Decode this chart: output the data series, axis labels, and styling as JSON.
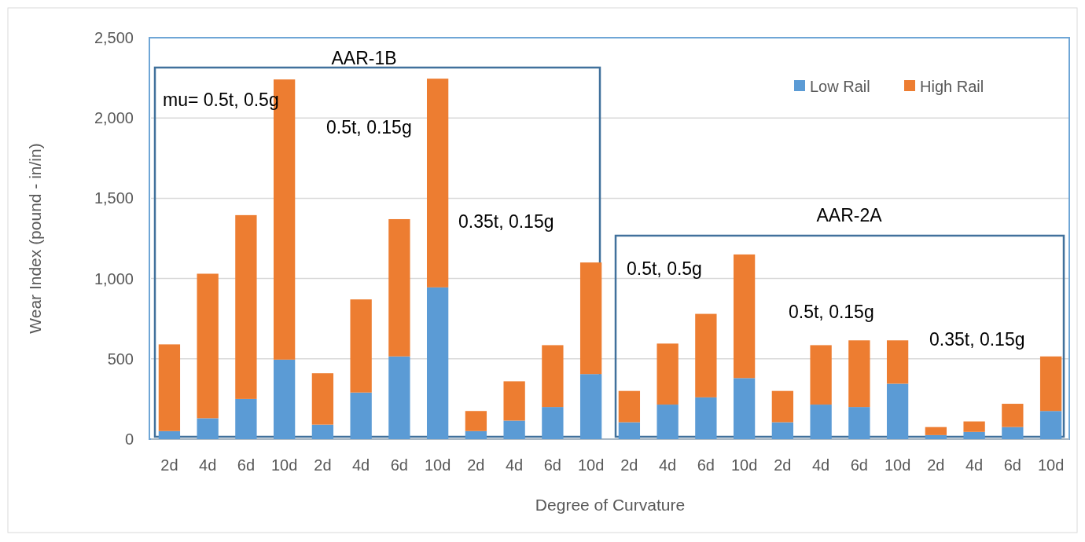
{
  "chart_data": {
    "type": "bar",
    "stacked": true,
    "xlabel": "Degree of Curvature",
    "ylabel": "Wear Index (pound - in/in)",
    "categories": [
      "2d",
      "4d",
      "6d",
      "10d",
      "2d",
      "4d",
      "6d",
      "10d",
      "2d",
      "4d",
      "6d",
      "10d",
      "2d",
      "4d",
      "6d",
      "10d",
      "2d",
      "4d",
      "6d",
      "10d",
      "2d",
      "4d",
      "6d",
      "10d"
    ],
    "series": [
      {
        "name": "Low Rail",
        "color": "#5b9bd5",
        "values": [
          50,
          130,
          250,
          495,
          90,
          290,
          515,
          945,
          50,
          115,
          200,
          405,
          105,
          215,
          260,
          380,
          105,
          215,
          200,
          345,
          25,
          45,
          75,
          175
        ]
      },
      {
        "name": "High Rail",
        "color": "#ed7d31",
        "values": [
          540,
          900,
          1145,
          1745,
          320,
          580,
          855,
          1300,
          125,
          245,
          385,
          695,
          195,
          380,
          520,
          770,
          195,
          370,
          415,
          270,
          50,
          65,
          145,
          340
        ]
      }
    ],
    "ylim": [
      0,
      2500
    ],
    "yticks": [
      {
        "value": 0,
        "label": "0"
      },
      {
        "value": 500,
        "label": "500"
      },
      {
        "value": 1000,
        "label": "1,000"
      },
      {
        "value": 1500,
        "label": "1,500"
      },
      {
        "value": 2000,
        "label": "2,000"
      },
      {
        "value": 2500,
        "label": "2,500"
      }
    ],
    "grid": "y",
    "legend": "top right",
    "annotations": [
      "AAR-1B",
      "mu= 0.5t, 0.5g",
      "0.5t, 0.15g",
      "0.35t, 0.15g",
      "AAR-2A",
      "0.5t, 0.5g",
      "0.5t, 0.15g",
      "0.35t, 0.15g"
    ]
  }
}
